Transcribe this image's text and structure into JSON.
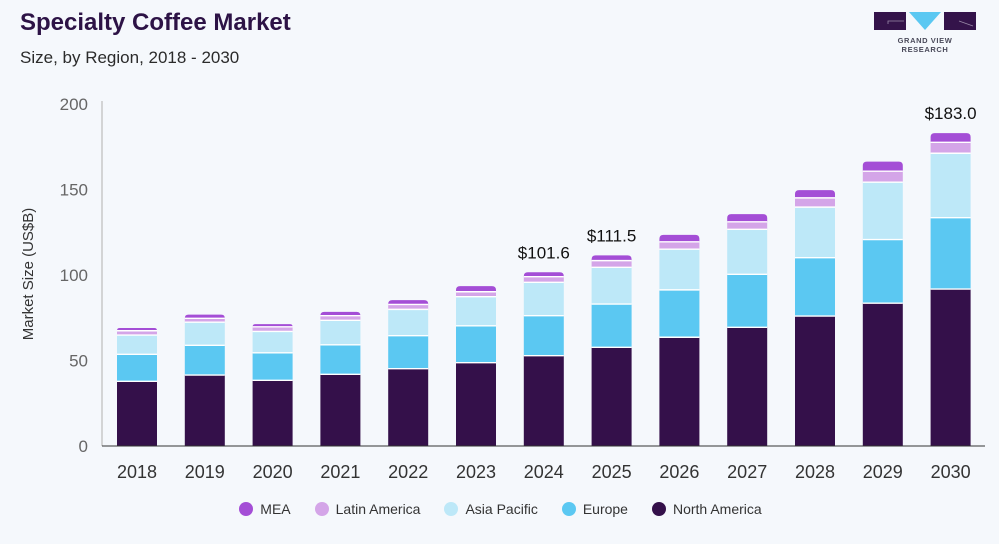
{
  "header": {
    "title": "Specialty Coffee Market",
    "subtitle": "Size, by Region, 2018 - 2030"
  },
  "logo": {
    "text": "GRAND VIEW RESEARCH",
    "colors": {
      "dark": "#34134a",
      "accent": "#5bc8f2"
    }
  },
  "chart_data": {
    "type": "bar",
    "stacked": true,
    "title": "Specialty Coffee Market",
    "subtitle": "Size, by Region, 2018 - 2030",
    "xlabel": "",
    "ylabel": "Market Size (US$B)",
    "ylim": [
      0,
      200
    ],
    "yticks": [
      0,
      50,
      100,
      150,
      200
    ],
    "grid": false,
    "legend_position": "bottom",
    "categories": [
      "2018",
      "2019",
      "2020",
      "2021",
      "2022",
      "2023",
      "2024",
      "2025",
      "2026",
      "2027",
      "2028",
      "2029",
      "2030"
    ],
    "series": [
      {
        "name": "North America",
        "color": "#34104a",
        "values": [
          37.8,
          41.5,
          38.4,
          41.9,
          45.2,
          48.7,
          52.8,
          57.7,
          63.6,
          69.4,
          76.0,
          83.5,
          91.8
        ]
      },
      {
        "name": "Europe",
        "color": "#5bc8f2",
        "values": [
          15.8,
          17.4,
          16.1,
          17.3,
          19.3,
          21.6,
          23.4,
          25.3,
          27.7,
          31.0,
          34.1,
          37.2,
          41.7
        ]
      },
      {
        "name": "Asia Pacific",
        "color": "#bde8f8",
        "values": [
          11.3,
          13.5,
          12.5,
          14.3,
          15.4,
          17.0,
          19.5,
          21.5,
          23.8,
          26.3,
          29.6,
          33.6,
          37.7
        ]
      },
      {
        "name": "Latin America",
        "color": "#d4a5e8",
        "values": [
          2.5,
          2.3,
          2.7,
          2.7,
          2.9,
          2.9,
          3.3,
          3.9,
          4.3,
          4.4,
          5.4,
          6.4,
          6.4
        ]
      },
      {
        "name": "MEA",
        "color": "#a44ed6",
        "values": [
          1.6,
          2.1,
          1.6,
          2.2,
          2.5,
          3.3,
          2.6,
          3.1,
          4.1,
          4.5,
          4.5,
          5.6,
          5.4
        ]
      }
    ],
    "annotations": [
      {
        "category": "2024",
        "label": "$101.6",
        "value": 101.6
      },
      {
        "category": "2025",
        "label": "$111.5",
        "value": 111.5
      },
      {
        "category": "2030",
        "label": "$183.0",
        "value": 183.0
      }
    ],
    "legend_order": [
      "MEA",
      "Latin America",
      "Asia Pacific",
      "Europe",
      "North America"
    ]
  }
}
